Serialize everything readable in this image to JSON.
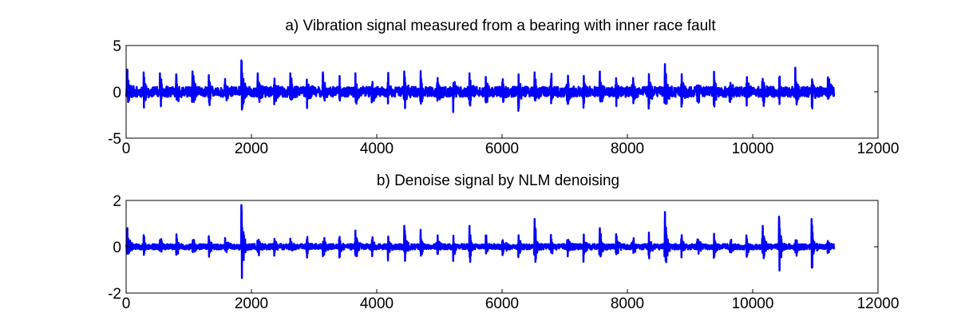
{
  "chart_data": [
    {
      "type": "line",
      "title": "a) Vibration signal measured from a bearing with inner race fault",
      "xlabel": "",
      "ylabel": "",
      "xlim": [
        0,
        12000
      ],
      "ylim": [
        -5,
        5
      ],
      "xticks": [
        0,
        2000,
        4000,
        6000,
        8000,
        10000,
        12000
      ],
      "yticks": [
        5,
        0,
        -5
      ],
      "color": "#0000ff",
      "series": [
        {
          "n_samples": 11300,
          "burst_period": 260,
          "burst_peaks": [
            {
              "x": 20,
              "y": 2.4
            },
            {
              "x": 280,
              "y": 2.1
            },
            {
              "x": 540,
              "y": 2.0
            },
            {
              "x": 800,
              "y": 1.9
            },
            {
              "x": 1060,
              "y": 2.2
            },
            {
              "x": 1320,
              "y": 1.8
            },
            {
              "x": 1690,
              "y": 3.4
            },
            {
              "x": 2080,
              "y": 2.0
            },
            {
              "x": 2600,
              "y": 2.0
            },
            {
              "x": 3120,
              "y": 2.1
            },
            {
              "x": 3640,
              "y": 2.0
            },
            {
              "x": 4440,
              "y": 2.2
            },
            {
              "x": 5470,
              "y": 2.0
            },
            {
              "x": 6500,
              "y": 2.1
            },
            {
              "x": 7540,
              "y": 2.2
            },
            {
              "x": 8500,
              "y": 3.0
            },
            {
              "x": 10600,
              "y": 2.6
            }
          ],
          "y_min": -2.9,
          "y_max": 3.4
        }
      ]
    },
    {
      "type": "line",
      "title": "b) Denoise signal by NLM denoising",
      "xlabel": "",
      "ylabel": "",
      "xlim": [
        0,
        12000
      ],
      "ylim": [
        -2,
        2
      ],
      "xticks": [
        0,
        2000,
        4000,
        6000,
        8000,
        10000,
        12000
      ],
      "yticks": [
        2,
        0,
        -2
      ],
      "color": "#0000ff",
      "series": [
        {
          "n_samples": 11300,
          "burst_period": 260,
          "burst_peaks": [
            {
              "x": 20,
              "y": 0.8
            },
            {
              "x": 280,
              "y": 0.5
            },
            {
              "x": 1690,
              "y": 1.8
            },
            {
              "x": 3660,
              "y": 0.7
            },
            {
              "x": 4480,
              "y": 0.9
            },
            {
              "x": 5430,
              "y": 0.9
            },
            {
              "x": 6520,
              "y": 1.2
            },
            {
              "x": 7500,
              "y": 0.8
            },
            {
              "x": 8480,
              "y": 1.5
            },
            {
              "x": 10120,
              "y": 0.9
            },
            {
              "x": 10520,
              "y": 1.3
            },
            {
              "x": 10930,
              "y": 1.2
            }
          ],
          "y_min": -1.5,
          "y_max": 1.8
        }
      ]
    }
  ]
}
